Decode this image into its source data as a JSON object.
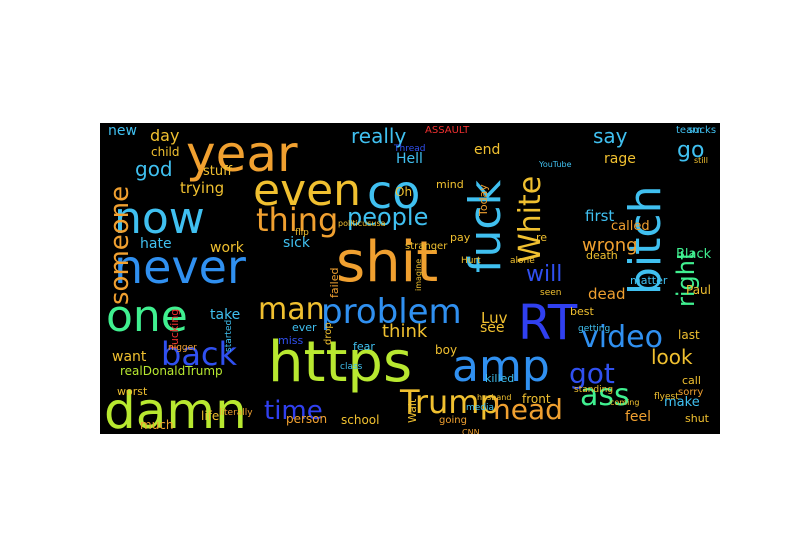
{
  "title": "Word cloud",
  "background_color": "#000000",
  "words": [
    {
      "text": "shit",
      "color": "#f0a030"
    },
    {
      "text": "https",
      "color": "#b8e830"
    },
    {
      "text": "amp",
      "color": "#3090f0"
    },
    {
      "text": "fuck",
      "color": "#40c0f0"
    },
    {
      "text": "bitch",
      "color": "#40c0f0"
    },
    {
      "text": "never",
      "color": "#3090f0"
    },
    {
      "text": "year",
      "color": "#f0a030"
    },
    {
      "text": "now",
      "color": "#40c0f0"
    },
    {
      "text": "damn",
      "color": "#b8e830"
    },
    {
      "text": "RT",
      "color": "#3040f0"
    },
    {
      "text": "one",
      "color": "#40f090"
    },
    {
      "text": "even",
      "color": "#f0c030"
    },
    {
      "text": "co",
      "color": "#40c0f0"
    },
    {
      "text": "problem",
      "color": "#3090f0"
    },
    {
      "text": "back",
      "color": "#3050f0"
    },
    {
      "text": "Trump",
      "color": "#f0c030"
    },
    {
      "text": "thing",
      "color": "#f0a030"
    },
    {
      "text": "White",
      "color": "#f0c030"
    },
    {
      "text": "people",
      "color": "#40c0f0"
    },
    {
      "text": "someone",
      "color": "#f0a030"
    },
    {
      "text": "man",
      "color": "#f0c030"
    },
    {
      "text": "right",
      "color": "#40f090"
    },
    {
      "text": "video",
      "color": "#3090f0"
    },
    {
      "text": "time",
      "color": "#3040f0"
    },
    {
      "text": "head",
      "color": "#f0a030"
    },
    {
      "text": "ass",
      "color": "#40f090"
    },
    {
      "text": "got",
      "color": "#3050f0"
    },
    {
      "text": "will",
      "color": "#3050f0"
    },
    {
      "text": "go",
      "color": "#40c0f0"
    },
    {
      "text": "really",
      "color": "#40c0f0"
    },
    {
      "text": "god",
      "color": "#40c0f0"
    },
    {
      "text": "say",
      "color": "#40c0f0"
    },
    {
      "text": "look",
      "color": "#f0c030"
    },
    {
      "text": "think",
      "color": "#f0c030"
    },
    {
      "text": "wrong",
      "color": "#f0a030"
    },
    {
      "text": "day",
      "color": "#f0c030"
    },
    {
      "text": "new",
      "color": "#40c0f0"
    },
    {
      "text": "trying",
      "color": "#f0c030"
    },
    {
      "text": "first",
      "color": "#40c0f0"
    },
    {
      "text": "Hell",
      "color": "#40c0f0"
    },
    {
      "text": "end",
      "color": "#f0c030"
    },
    {
      "text": "dead",
      "color": "#f0a030"
    },
    {
      "text": "Luv",
      "color": "#f0c030"
    },
    {
      "text": "hate",
      "color": "#40c0f0"
    },
    {
      "text": "work",
      "color": "#f0c030"
    },
    {
      "text": "sick",
      "color": "#40c0f0"
    },
    {
      "text": "take",
      "color": "#40c0f0"
    },
    {
      "text": "see",
      "color": "#f0c030"
    },
    {
      "text": "want",
      "color": "#f0c030"
    },
    {
      "text": "rage",
      "color": "#f0c030"
    },
    {
      "text": "child",
      "color": "#f0c030"
    },
    {
      "text": "stuff",
      "color": "#f0c030"
    },
    {
      "text": "feel",
      "color": "#f0a030"
    },
    {
      "text": "called",
      "color": "#f0a030"
    },
    {
      "text": "Black",
      "color": "#40f090"
    },
    {
      "text": "Paul",
      "color": "#f0c030"
    },
    {
      "text": "make",
      "color": "#40c0f0"
    },
    {
      "text": "realDonaldTrump",
      "color": "#b8e830"
    },
    {
      "text": "much",
      "color": "#f0a030"
    },
    {
      "text": "life",
      "color": "#f0c030"
    },
    {
      "text": "person",
      "color": "#f0a030"
    },
    {
      "text": "school",
      "color": "#f0c030"
    },
    {
      "text": "killed",
      "color": "#40c0f0"
    },
    {
      "text": "front",
      "color": "#f0c030"
    },
    {
      "text": "last",
      "color": "#f0c030"
    },
    {
      "text": "call",
      "color": "#f0c030"
    },
    {
      "text": "shut",
      "color": "#f0c030"
    },
    {
      "text": "fucking",
      "color": "#f03030"
    },
    {
      "text": "worst",
      "color": "#f0c030"
    },
    {
      "text": "ever",
      "color": "#40c0f0"
    },
    {
      "text": "miss",
      "color": "#3050f0"
    },
    {
      "text": "boy",
      "color": "#f0c030"
    },
    {
      "text": "Wait",
      "color": "#f0c030"
    },
    {
      "text": "Oh",
      "color": "#f0c030"
    },
    {
      "text": "mind",
      "color": "#f0c030"
    },
    {
      "text": "Today",
      "color": "#f0a030"
    },
    {
      "text": "death",
      "color": "#f0c030"
    },
    {
      "text": "best",
      "color": "#f0c030"
    },
    {
      "text": "going",
      "color": "#f0a030"
    },
    {
      "text": "fear",
      "color": "#40c0f0"
    },
    {
      "text": "drop",
      "color": "#f0c030"
    },
    {
      "text": "failed",
      "color": "#f0a030"
    },
    {
      "text": "pay",
      "color": "#f0c030"
    },
    {
      "text": "matter",
      "color": "#40c0f0"
    },
    {
      "text": "re",
      "color": "#f0c030"
    },
    {
      "text": "ASSAULT",
      "color": "#f03030"
    },
    {
      "text": "Thread",
      "color": "#3050f0"
    },
    {
      "text": "sorry",
      "color": "#f0a030"
    },
    {
      "text": "team",
      "color": "#40c0f0"
    },
    {
      "text": "sucks",
      "color": "#40c0f0"
    },
    {
      "text": "stranger",
      "color": "#f0c030"
    },
    {
      "text": "politicususa",
      "color": "#f0c030"
    },
    {
      "text": "started",
      "color": "#40c0f0"
    },
    {
      "text": "CNN",
      "color": "#f0a030"
    },
    {
      "text": "media",
      "color": "#40c0f0"
    },
    {
      "text": "class",
      "color": "#40c0f0"
    },
    {
      "text": "getting",
      "color": "#40c0f0"
    },
    {
      "text": "standing",
      "color": "#f0c030"
    },
    {
      "text": "flip",
      "color": "#f0c030"
    },
    {
      "text": "nigger",
      "color": "#f0a030"
    },
    {
      "text": "alone",
      "color": "#f0c030"
    },
    {
      "text": "Hurt",
      "color": "#f0c030"
    },
    {
      "text": "seen",
      "color": "#f0c030"
    },
    {
      "text": "YouTube",
      "color": "#40c0f0"
    },
    {
      "text": "still",
      "color": "#f0c030"
    },
    {
      "text": "flyest",
      "color": "#f0c030"
    },
    {
      "text": "coming",
      "color": "#f0c030"
    },
    {
      "text": "husband",
      "color": "#f0c030"
    },
    {
      "text": "literally",
      "color": "#f0a030"
    },
    {
      "text": "imagine",
      "color": "#f0c030"
    }
  ]
}
